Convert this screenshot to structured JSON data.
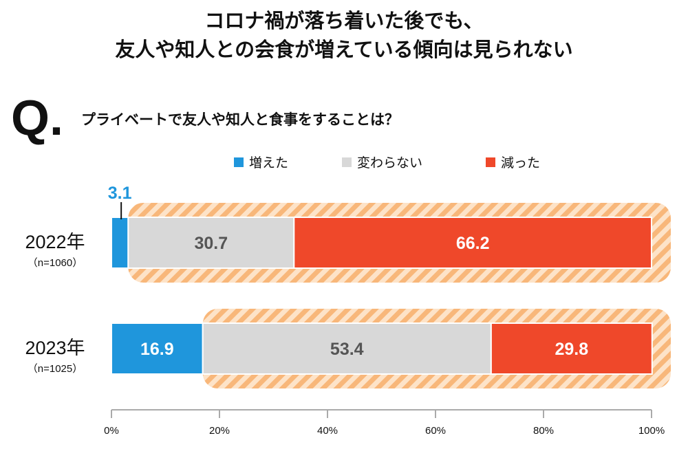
{
  "header": {
    "title_line1": "コロナ禍が落ち着いた後でも、",
    "title_line2": "友人や知人との会食が増えている傾向は見られない",
    "q_mark": "Q.",
    "question": "プライベートで友人や知人と食事をすることは？"
  },
  "chart_data": {
    "type": "bar",
    "orientation": "horizontal-stacked-100",
    "categories": [
      "2022年",
      "2023年"
    ],
    "category_notes": [
      "（n=1060）",
      "（n=1025）"
    ],
    "series": [
      {
        "name": "増えた",
        "values": [
          3.1,
          16.9
        ],
        "color": "#1f96dc"
      },
      {
        "name": "変わらない",
        "values": [
          30.7,
          53.4
        ],
        "color": "#d8d8d8"
      },
      {
        "name": "減った",
        "values": [
          66.2,
          29.8
        ],
        "color": "#ef482a"
      }
    ],
    "xlim": [
      0,
      100
    ],
    "xticks": [
      "0%",
      "20%",
      "40%",
      "60%",
      "80%",
      "100%"
    ],
    "legend_position": "top",
    "highlight_color": "#f8b77a",
    "grid": false
  }
}
